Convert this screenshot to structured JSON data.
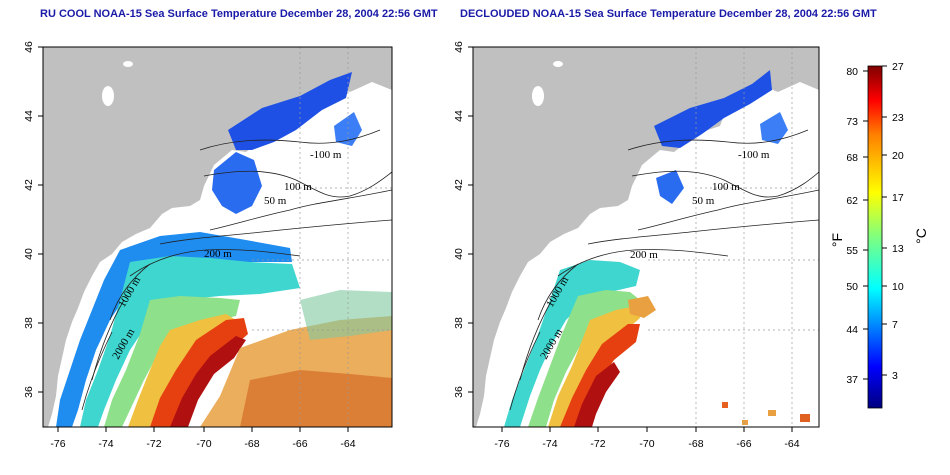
{
  "panels": [
    {
      "title": "RU COOL NOAA-15 Sea Surface Temperature December 28, 2004 22:56 GMT",
      "contour_labels": [
        "-100 m",
        "100 m",
        "50 m",
        "200 m",
        "1000 m",
        "2000 m"
      ]
    },
    {
      "title": "DECLOUDED NOAA-15 Sea Surface Temperature December 28, 2004 22:56 GMT",
      "contour_labels": [
        "-100 m",
        "100 m",
        "50 m",
        "200 m",
        "1000 m",
        "2000 m"
      ]
    }
  ],
  "map": {
    "lon_ticks": [
      "-76",
      "-74",
      "-72",
      "-70",
      "-68",
      "-66",
      "-64"
    ],
    "lat_ticks": [
      "46",
      "44",
      "42",
      "40",
      "38",
      "36"
    ],
    "lon_range": [
      -77,
      -63
    ],
    "lat_range": [
      35,
      46
    ],
    "land_color": "#c0c0c0",
    "ocean_nodata_color": "#ffffff"
  },
  "colorbar": {
    "unit_left": "°F",
    "unit_right": "°C",
    "fahrenheit_ticks": [
      "80",
      "73",
      "68",
      "62",
      "55",
      "50",
      "44",
      "37"
    ],
    "celsius_ticks": [
      "27",
      "23",
      "20",
      "17",
      "13",
      "10",
      "7",
      "3"
    ],
    "range_c": [
      0,
      27
    ],
    "colormap": [
      "#00007f",
      "#0000ff",
      "#007fff",
      "#00ffff",
      "#7fff7f",
      "#ffff00",
      "#ff7f00",
      "#ff0000",
      "#7f0000"
    ]
  }
}
